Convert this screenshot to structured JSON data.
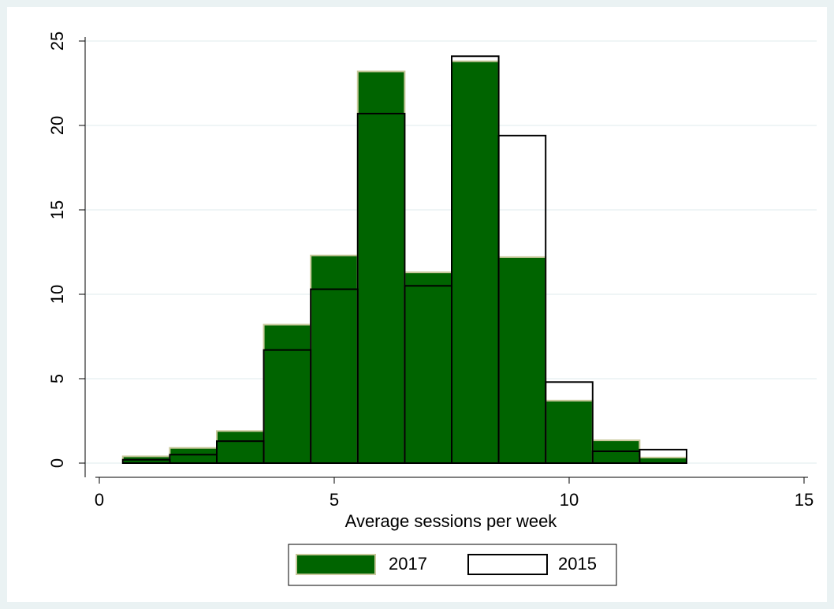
{
  "chart_data": {
    "type": "histogram",
    "xlabel": "Average sessions per week",
    "bins": [
      0.5,
      1.5,
      2.5,
      3.5,
      4.5,
      5.5,
      6.5,
      7.5,
      8.5,
      9.5,
      10.5,
      11.5,
      12.5
    ],
    "series": [
      {
        "name": "2017",
        "color": "#006400",
        "edgecolor": "#c8c89b",
        "values": [
          0.4,
          0.9,
          1.9,
          8.2,
          12.3,
          23.2,
          11.3,
          23.8,
          12.2,
          3.7,
          1.35,
          0.33
        ]
      },
      {
        "name": "2015",
        "color": "none",
        "edgecolor": "#000000",
        "values": [
          0.2,
          0.5,
          1.3,
          6.7,
          10.3,
          20.7,
          10.5,
          24.1,
          19.4,
          4.8,
          0.7,
          0.8
        ]
      }
    ],
    "xlim": [
      0,
      15
    ],
    "xticks": [
      0,
      5,
      10,
      15
    ],
    "ylim": [
      0,
      25
    ],
    "yticks": [
      0,
      5,
      10,
      15,
      20,
      25
    ],
    "grid": true,
    "legend": "bottom"
  }
}
